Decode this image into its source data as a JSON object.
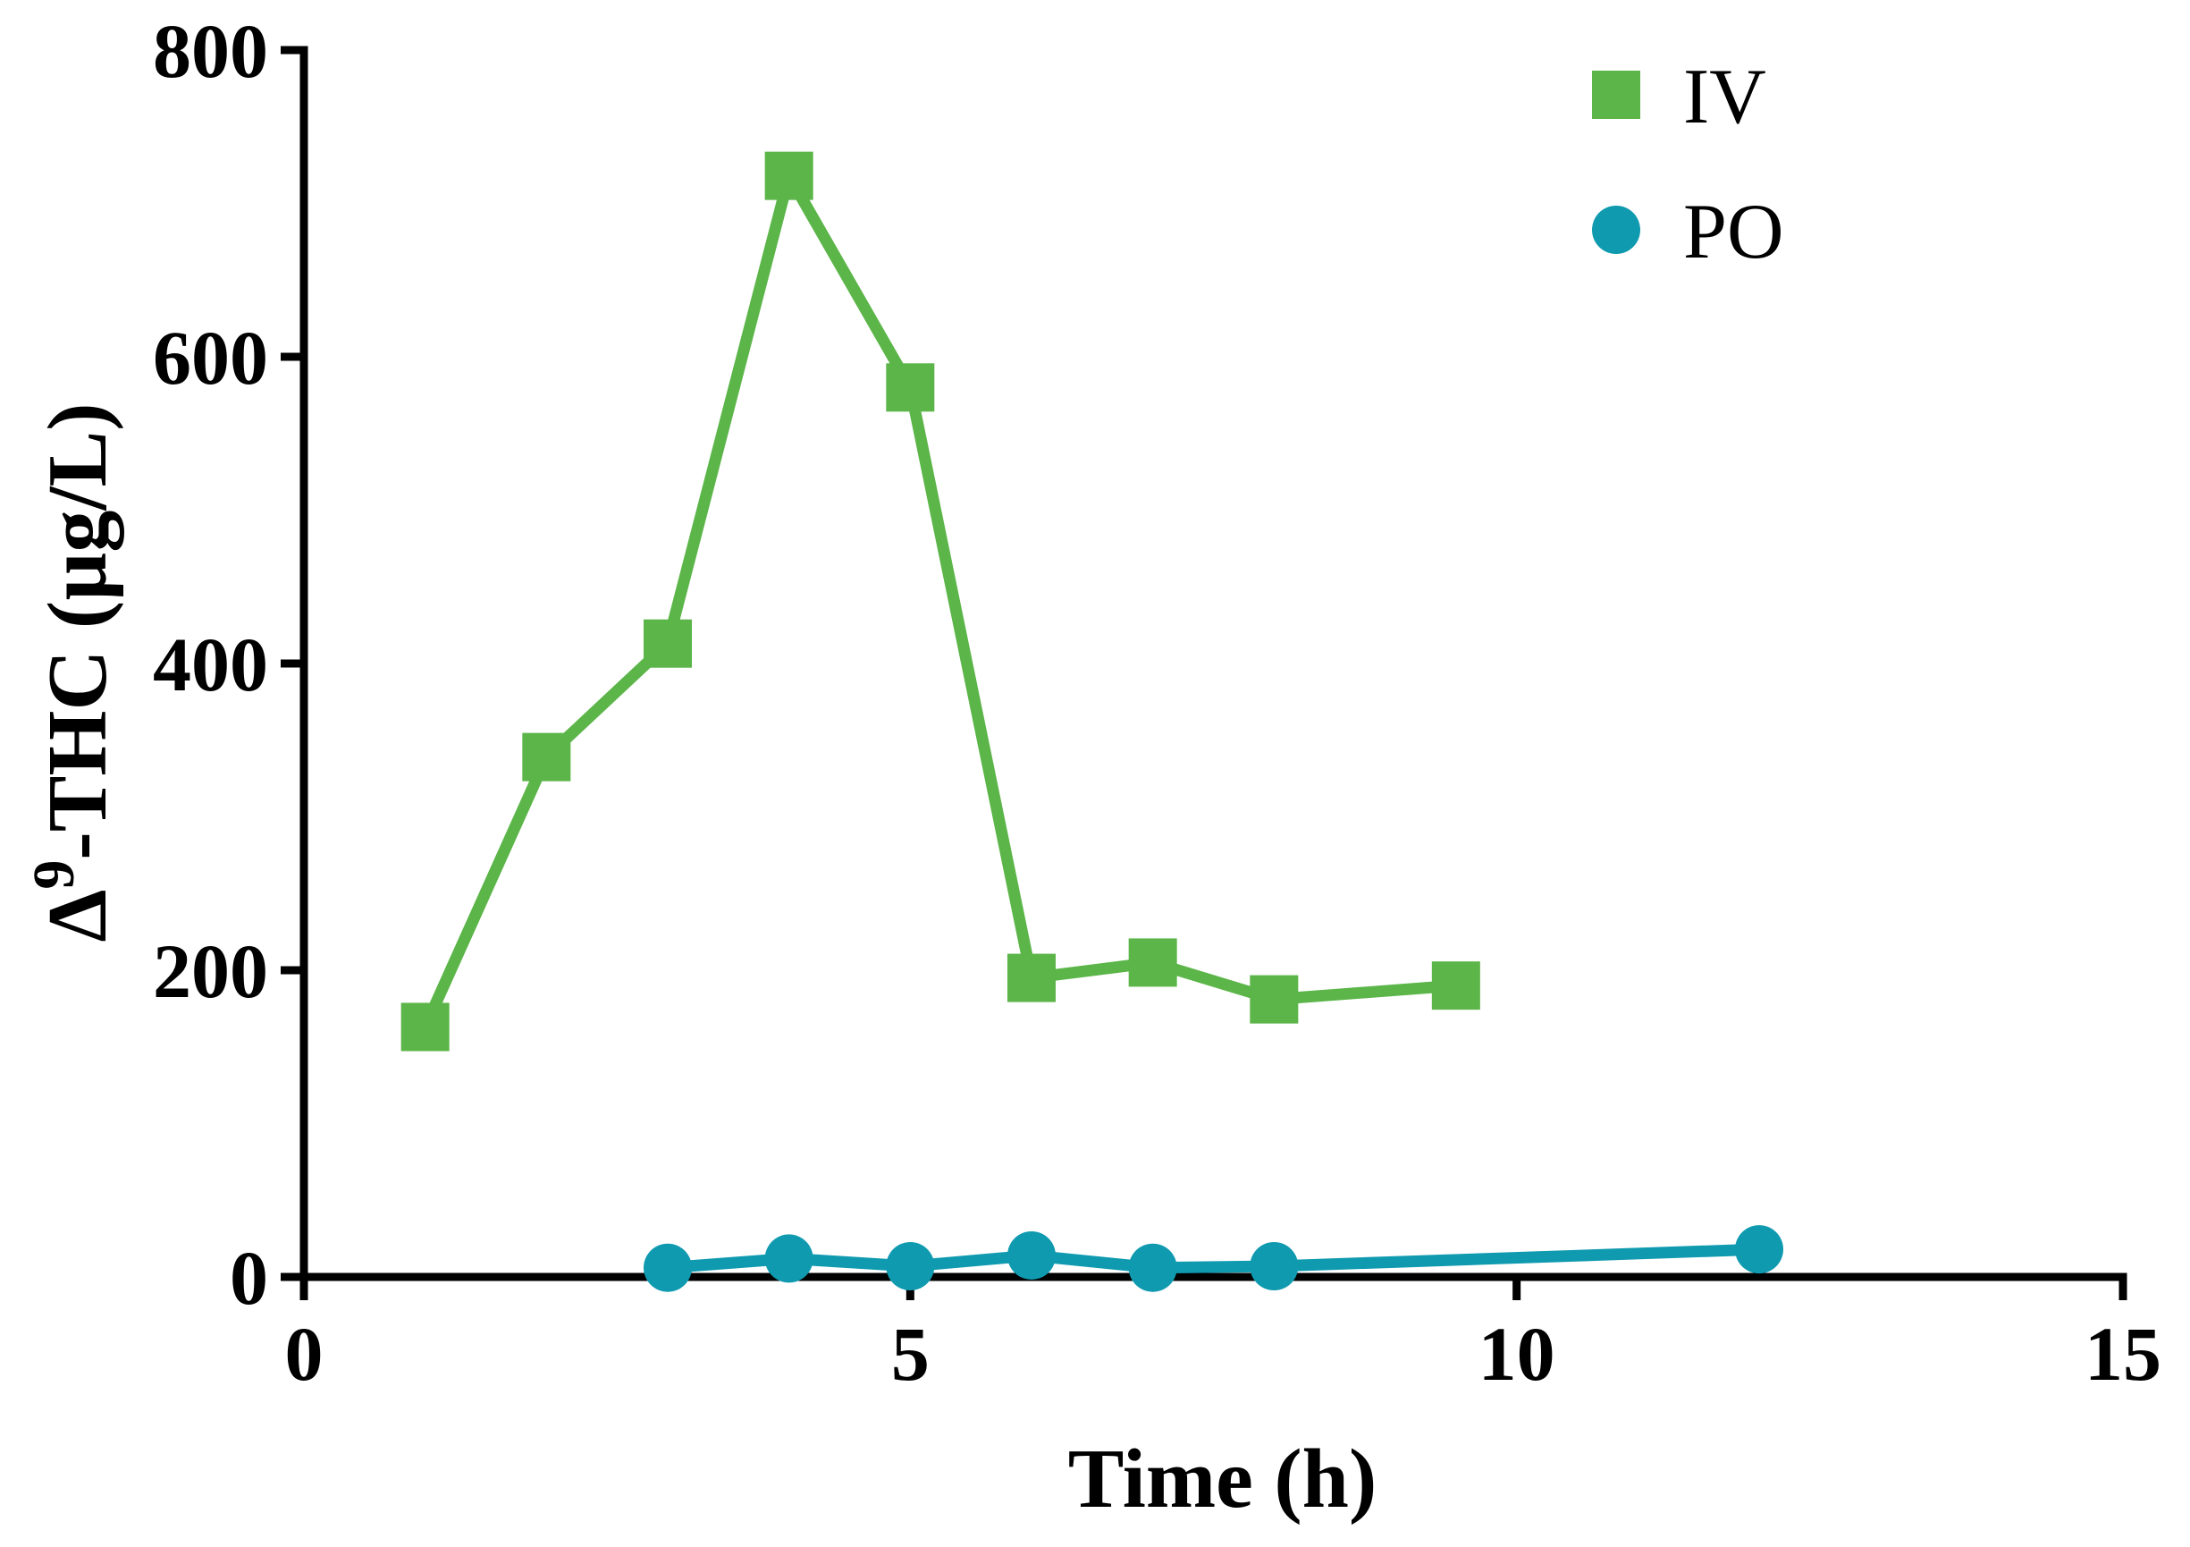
{
  "chart_data": {
    "type": "line",
    "title": "",
    "xlabel": "Time (h)",
    "ylabel_prefix": "Δ",
    "ylabel_superscript": "9",
    "ylabel_suffix": "-THC (µg/L)",
    "xlim": [
      0,
      15
    ],
    "ylim": [
      0,
      800
    ],
    "x_ticks": [
      0,
      5,
      10,
      15
    ],
    "y_ticks": [
      0,
      200,
      400,
      600,
      800
    ],
    "x_tick_labels": [
      "0",
      "5",
      "10",
      "15"
    ],
    "y_tick_labels": [
      "0",
      "200",
      "400",
      "600",
      "800"
    ],
    "grid": false,
    "legend_position": "top-right",
    "series": [
      {
        "name": "IV",
        "marker": "square",
        "color": "#5bb548",
        "x": [
          1,
          2,
          3,
          4,
          5,
          6,
          7,
          8,
          9.5
        ],
        "y": [
          163,
          339,
          413,
          718,
          580,
          195,
          205,
          181,
          190
        ]
      },
      {
        "name": "PO",
        "marker": "circle",
        "color": "#0f9ab0",
        "x": [
          3,
          4,
          5,
          6,
          7,
          8,
          12
        ],
        "y": [
          6,
          12,
          7,
          14,
          6,
          7,
          18
        ]
      }
    ]
  }
}
